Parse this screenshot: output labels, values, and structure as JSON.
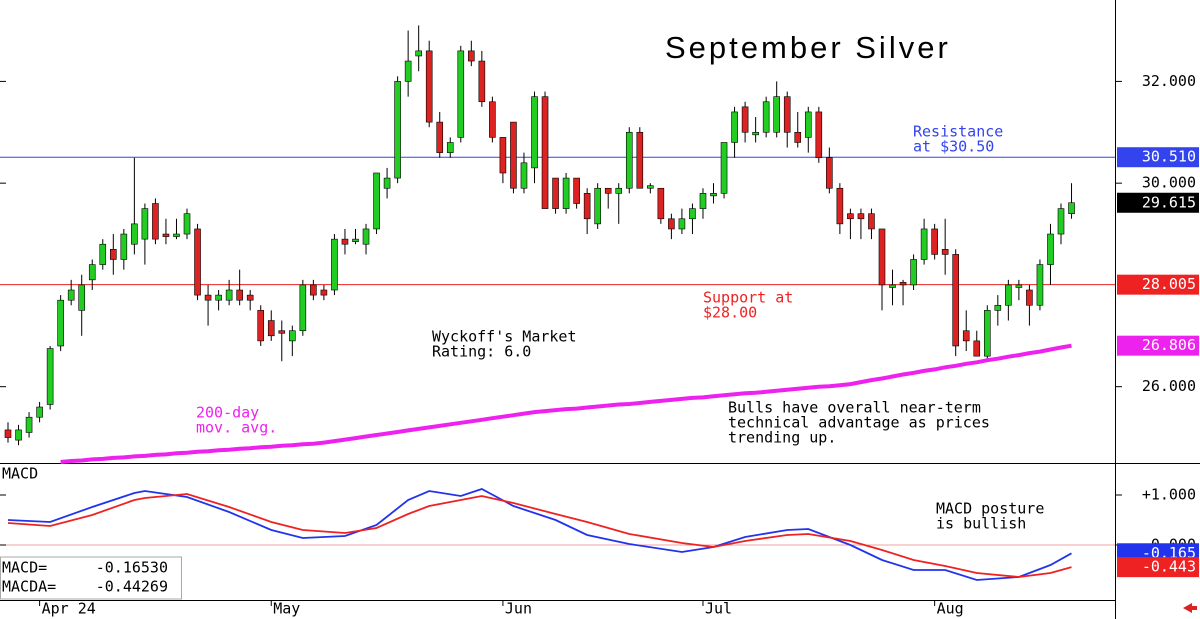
{
  "chart_data": [
    {
      "type": "candlestick",
      "title": "September Silver",
      "ylim": [
        24.5,
        33.6
      ],
      "yticks": [
        {
          "value": 26,
          "label": "26.000"
        },
        {
          "value": 30,
          "label": "30.000"
        },
        {
          "value": 32,
          "label": "32.000"
        }
      ],
      "up_color": "#22cc22",
      "down_color": "#dd2222",
      "ohlc": [
        [
          25.15,
          25.3,
          24.9,
          25.0
        ],
        [
          24.95,
          25.25,
          24.85,
          25.15
        ],
        [
          25.1,
          25.5,
          25.0,
          25.4
        ],
        [
          25.4,
          25.7,
          25.3,
          25.6
        ],
        [
          25.65,
          26.8,
          25.55,
          26.75
        ],
        [
          26.8,
          27.8,
          26.7,
          27.7
        ],
        [
          27.7,
          28.1,
          27.6,
          27.9
        ],
        [
          27.5,
          28.2,
          27.0,
          28.0
        ],
        [
          28.1,
          28.5,
          27.9,
          28.4
        ],
        [
          28.4,
          28.9,
          28.3,
          28.8
        ],
        [
          28.7,
          29.0,
          28.2,
          28.5
        ],
        [
          28.5,
          29.1,
          28.3,
          29.0
        ],
        [
          28.8,
          30.5,
          28.6,
          29.2
        ],
        [
          28.9,
          29.6,
          28.4,
          29.5
        ],
        [
          29.6,
          29.7,
          28.8,
          28.9
        ],
        [
          29.0,
          29.3,
          28.8,
          28.95
        ],
        [
          28.95,
          29.3,
          28.9,
          29.0
        ],
        [
          29.0,
          29.5,
          28.9,
          29.4
        ],
        [
          29.1,
          29.2,
          27.7,
          27.8
        ],
        [
          27.8,
          28.0,
          27.2,
          27.7
        ],
        [
          27.7,
          27.9,
          27.5,
          27.8
        ],
        [
          27.7,
          28.1,
          27.6,
          27.9
        ],
        [
          27.9,
          28.3,
          27.6,
          27.7
        ],
        [
          27.8,
          27.9,
          27.5,
          27.7
        ],
        [
          27.5,
          27.6,
          26.8,
          26.9
        ],
        [
          27.3,
          27.5,
          26.9,
          27.0
        ],
        [
          27.1,
          27.3,
          26.5,
          27.05
        ],
        [
          26.9,
          27.2,
          26.6,
          27.1
        ],
        [
          27.1,
          28.1,
          27.0,
          28.0
        ],
        [
          28.0,
          28.1,
          27.7,
          27.8
        ],
        [
          27.9,
          28.0,
          27.7,
          27.8
        ],
        [
          27.9,
          29.0,
          27.8,
          28.9
        ],
        [
          28.9,
          29.1,
          28.6,
          28.8
        ],
        [
          28.85,
          29.1,
          28.8,
          28.9
        ],
        [
          28.8,
          29.2,
          28.6,
          29.1
        ],
        [
          29.1,
          30.2,
          29.0,
          30.2
        ],
        [
          29.9,
          30.3,
          29.7,
          30.1
        ],
        [
          30.1,
          32.1,
          30.0,
          32.0
        ],
        [
          32.0,
          33.0,
          31.7,
          32.4
        ],
        [
          32.5,
          33.1,
          32.2,
          32.6
        ],
        [
          32.6,
          32.8,
          31.1,
          31.2
        ],
        [
          31.2,
          31.4,
          30.5,
          30.6
        ],
        [
          30.6,
          30.9,
          30.5,
          30.8
        ],
        [
          30.9,
          32.7,
          30.8,
          32.6
        ],
        [
          32.6,
          32.8,
          32.3,
          32.4
        ],
        [
          32.4,
          32.6,
          31.5,
          31.6
        ],
        [
          31.6,
          31.7,
          30.8,
          30.9
        ],
        [
          30.9,
          30.9,
          30.0,
          30.2
        ],
        [
          31.2,
          31.2,
          29.8,
          29.9
        ],
        [
          29.9,
          30.6,
          29.8,
          30.4
        ],
        [
          30.3,
          31.8,
          30.0,
          31.7
        ],
        [
          31.7,
          31.8,
          29.5,
          29.5
        ],
        [
          30.1,
          30.1,
          29.4,
          29.5
        ],
        [
          29.5,
          30.2,
          29.4,
          30.1
        ],
        [
          30.1,
          30.1,
          29.5,
          29.6
        ],
        [
          29.8,
          29.9,
          29.0,
          29.3
        ],
        [
          29.2,
          30.0,
          29.1,
          29.9
        ],
        [
          29.9,
          29.9,
          29.5,
          29.8
        ],
        [
          29.8,
          30.0,
          29.2,
          29.9
        ],
        [
          29.9,
          31.1,
          29.8,
          31.0
        ],
        [
          31.0,
          31.1,
          29.9,
          29.9
        ],
        [
          29.9,
          30.0,
          29.8,
          29.95
        ],
        [
          29.9,
          29.9,
          29.2,
          29.3
        ],
        [
          29.3,
          29.4,
          28.9,
          29.1
        ],
        [
          29.1,
          29.5,
          29.0,
          29.3
        ],
        [
          29.3,
          29.6,
          29.0,
          29.5
        ],
        [
          29.5,
          29.9,
          29.3,
          29.8
        ],
        [
          29.75,
          30.0,
          29.6,
          29.8
        ],
        [
          29.8,
          30.8,
          29.7,
          30.8
        ],
        [
          30.8,
          31.5,
          30.5,
          31.4
        ],
        [
          31.5,
          31.6,
          30.8,
          31.0
        ],
        [
          30.95,
          31.3,
          30.8,
          31.0
        ],
        [
          31.0,
          31.7,
          30.9,
          31.6
        ],
        [
          31.0,
          32.0,
          30.9,
          31.7
        ],
        [
          31.7,
          31.8,
          30.7,
          31.0
        ],
        [
          31.0,
          31.4,
          30.7,
          30.8
        ],
        [
          30.9,
          31.5,
          30.6,
          31.4
        ],
        [
          31.4,
          31.5,
          30.4,
          30.5
        ],
        [
          30.5,
          30.7,
          29.8,
          29.9
        ],
        [
          29.9,
          30.0,
          29.0,
          29.2
        ],
        [
          29.4,
          29.5,
          28.9,
          29.3
        ],
        [
          29.4,
          29.5,
          28.9,
          29.3
        ],
        [
          29.4,
          29.5,
          28.9,
          29.1
        ],
        [
          29.1,
          29.1,
          27.5,
          28.0
        ],
        [
          27.95,
          28.3,
          27.6,
          28.0
        ],
        [
          28.05,
          28.1,
          27.6,
          28.0
        ],
        [
          28.0,
          28.6,
          27.9,
          28.5
        ],
        [
          28.5,
          29.3,
          28.4,
          29.1
        ],
        [
          29.1,
          29.2,
          28.5,
          28.6
        ],
        [
          28.7,
          29.3,
          28.2,
          28.6
        ],
        [
          28.6,
          28.7,
          26.6,
          26.8
        ],
        [
          27.1,
          27.5,
          26.7,
          26.9
        ],
        [
          26.9,
          27.1,
          26.6,
          26.6
        ],
        [
          26.6,
          27.6,
          26.5,
          27.5
        ],
        [
          27.5,
          27.8,
          27.2,
          27.6
        ],
        [
          27.6,
          28.1,
          27.3,
          28.0
        ],
        [
          27.95,
          28.1,
          27.7,
          28.0
        ],
        [
          27.9,
          28.0,
          27.2,
          27.6
        ],
        [
          27.6,
          28.5,
          27.5,
          28.4
        ],
        [
          28.4,
          29.2,
          28.0,
          29.0
        ],
        [
          29.0,
          29.6,
          28.8,
          29.5
        ],
        [
          29.4,
          30.0,
          29.3,
          29.615
        ]
      ],
      "last_label": "29.615",
      "last_color": "#000000",
      "moving_average": {
        "color": "#ee22ee",
        "last_label": "26.806",
        "values": [
          null,
          null,
          null,
          null,
          null,
          24.52,
          24.54,
          24.55,
          24.57,
          24.58,
          24.6,
          24.61,
          24.63,
          24.64,
          24.66,
          24.67,
          24.69,
          24.7,
          24.72,
          24.73,
          24.75,
          24.76,
          24.78,
          24.79,
          24.81,
          24.82,
          24.84,
          24.85,
          24.87,
          24.88,
          24.9,
          24.93,
          24.96,
          24.99,
          25.02,
          25.05,
          25.08,
          25.11,
          25.14,
          25.17,
          25.2,
          25.23,
          25.26,
          25.29,
          25.32,
          25.35,
          25.38,
          25.41,
          25.44,
          25.47,
          25.5,
          25.52,
          25.54,
          25.56,
          25.57,
          25.59,
          25.61,
          25.63,
          25.65,
          25.66,
          25.68,
          25.7,
          25.72,
          25.74,
          25.76,
          25.78,
          25.79,
          25.81,
          25.83,
          25.85,
          25.87,
          25.88,
          25.9,
          25.92,
          25.94,
          25.96,
          25.98,
          26.0,
          26.01,
          26.03,
          26.05,
          26.09,
          26.13,
          26.16,
          26.2,
          26.24,
          26.27,
          26.31,
          26.34,
          26.38,
          26.41,
          26.45,
          26.48,
          26.52,
          26.55,
          26.59,
          26.62,
          26.66,
          26.69,
          26.73,
          26.77,
          26.806
        ]
      },
      "levels": [
        {
          "value": 30.51,
          "label": "30.510",
          "color": "#3344ee"
        },
        {
          "value": 28.005,
          "label": "28.005",
          "color": "#ee2222"
        }
      ],
      "annotations": [
        {
          "lines": [
            "Resistance",
            "at $30.50"
          ],
          "color": "#3344ee"
        },
        {
          "lines": [
            "Support at",
            "$28.00"
          ],
          "color": "#ee2222"
        },
        {
          "lines": [
            "Wyckoff's Market",
            "Rating: 6.0"
          ],
          "color": "#000000"
        },
        {
          "lines": [
            "Bulls have overall near-term",
            "technical advantage as prices",
            "trending up."
          ],
          "color": "#000000"
        },
        {
          "lines": [
            "200-day",
            "mov. avg."
          ],
          "color": "#ee22ee"
        }
      ]
    },
    {
      "type": "line",
      "title": "MACD",
      "ylim": [
        -1.1,
        1.62
      ],
      "yticks": [
        {
          "value": 1,
          "label": "+1.000"
        },
        {
          "value": 0,
          "label": "0.000"
        }
      ],
      "zero_color": "#f0a0a0",
      "x": [
        0,
        4,
        8,
        12,
        13,
        17,
        21,
        25,
        28,
        32,
        35,
        38,
        40,
        43,
        45,
        48,
        52,
        55,
        59,
        64,
        67,
        70,
        74,
        76,
        80,
        83,
        86,
        89,
        92,
        96,
        99,
        101
      ],
      "xticks": [
        {
          "value": 3,
          "label": "Apr 24"
        },
        {
          "value": 25,
          "label": "May"
        },
        {
          "value": 47,
          "label": "Jun"
        },
        {
          "value": 66,
          "label": "Jul"
        },
        {
          "value": 88,
          "label": "Aug"
        }
      ],
      "series": [
        {
          "name": "MACD=",
          "color": "#2233ee",
          "value_label": "-0.16530",
          "axis_label": "-0.165",
          "values": [
            0.5,
            0.46,
            0.76,
            1.04,
            1.08,
            0.96,
            0.66,
            0.3,
            0.14,
            0.18,
            0.4,
            0.9,
            1.08,
            0.98,
            1.12,
            0.78,
            0.5,
            0.2,
            0.02,
            -0.14,
            -0.04,
            0.16,
            0.3,
            0.32,
            0.0,
            -0.3,
            -0.5,
            -0.5,
            -0.7,
            -0.64,
            -0.4,
            -0.1653
          ]
        },
        {
          "name": "MACDA=",
          "color": "#ee2222",
          "value_label": "-0.44269",
          "axis_label": "-0.443",
          "values": [
            0.44,
            0.38,
            0.6,
            0.9,
            0.94,
            1.02,
            0.76,
            0.46,
            0.3,
            0.24,
            0.34,
            0.62,
            0.78,
            0.9,
            0.98,
            0.84,
            0.62,
            0.46,
            0.22,
            0.04,
            -0.04,
            0.08,
            0.2,
            0.22,
            0.08,
            -0.1,
            -0.3,
            -0.42,
            -0.56,
            -0.64,
            -0.56,
            -0.44269
          ]
        }
      ],
      "annotations": [
        {
          "lines": [
            "MACD posture",
            "is bullish"
          ],
          "color": "#000000"
        }
      ]
    }
  ]
}
